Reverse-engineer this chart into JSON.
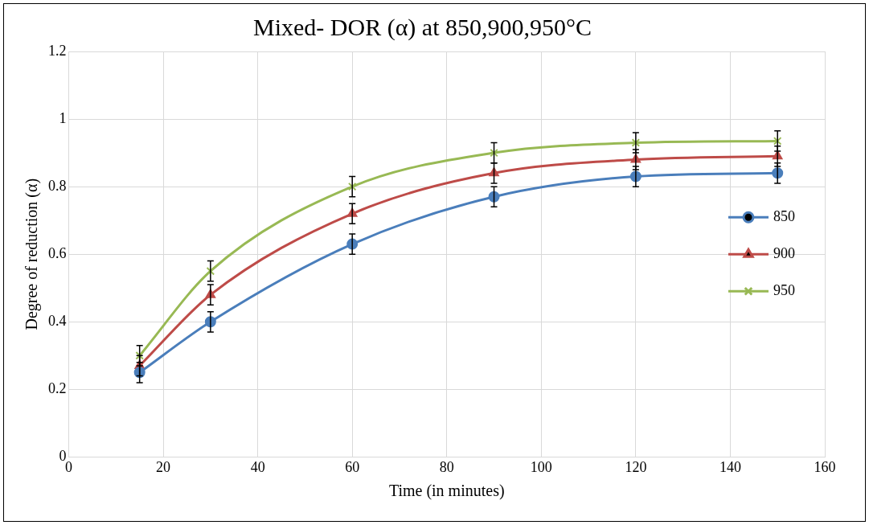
{
  "chart_data": {
    "type": "line",
    "title": "Mixed- DOR (α) at 850,900,950°C",
    "xlabel": "Time (in minutes)",
    "ylabel": "Degree of reduction (α)",
    "x": [
      15,
      30,
      60,
      90,
      120,
      150
    ],
    "series": [
      {
        "name": "850",
        "color": "#4a7ebb",
        "marker": "circle",
        "values": [
          0.25,
          0.4,
          0.63,
          0.77,
          0.83,
          0.84
        ],
        "errors": [
          0.03,
          0.03,
          0.03,
          0.03,
          0.03,
          0.03
        ]
      },
      {
        "name": "900",
        "color": "#be4b48",
        "marker": "triangle",
        "values": [
          0.27,
          0.48,
          0.72,
          0.84,
          0.88,
          0.89
        ],
        "errors": [
          0.03,
          0.03,
          0.03,
          0.03,
          0.03,
          0.03
        ]
      },
      {
        "name": "950",
        "color": "#98b954",
        "marker": "cross",
        "values": [
          0.3,
          0.55,
          0.8,
          0.9,
          0.93,
          0.935
        ],
        "errors": [
          0.03,
          0.03,
          0.03,
          0.03,
          0.03,
          0.03
        ]
      }
    ],
    "xlim": [
      0,
      160
    ],
    "xticks": [
      0,
      20,
      40,
      60,
      80,
      100,
      120,
      140,
      160
    ],
    "ylim": [
      0,
      1.2
    ],
    "yticks": [
      0,
      0.2,
      0.4,
      0.6,
      0.8,
      1,
      1.2
    ],
    "grid": true,
    "legend": "right",
    "line_style": "solid"
  }
}
